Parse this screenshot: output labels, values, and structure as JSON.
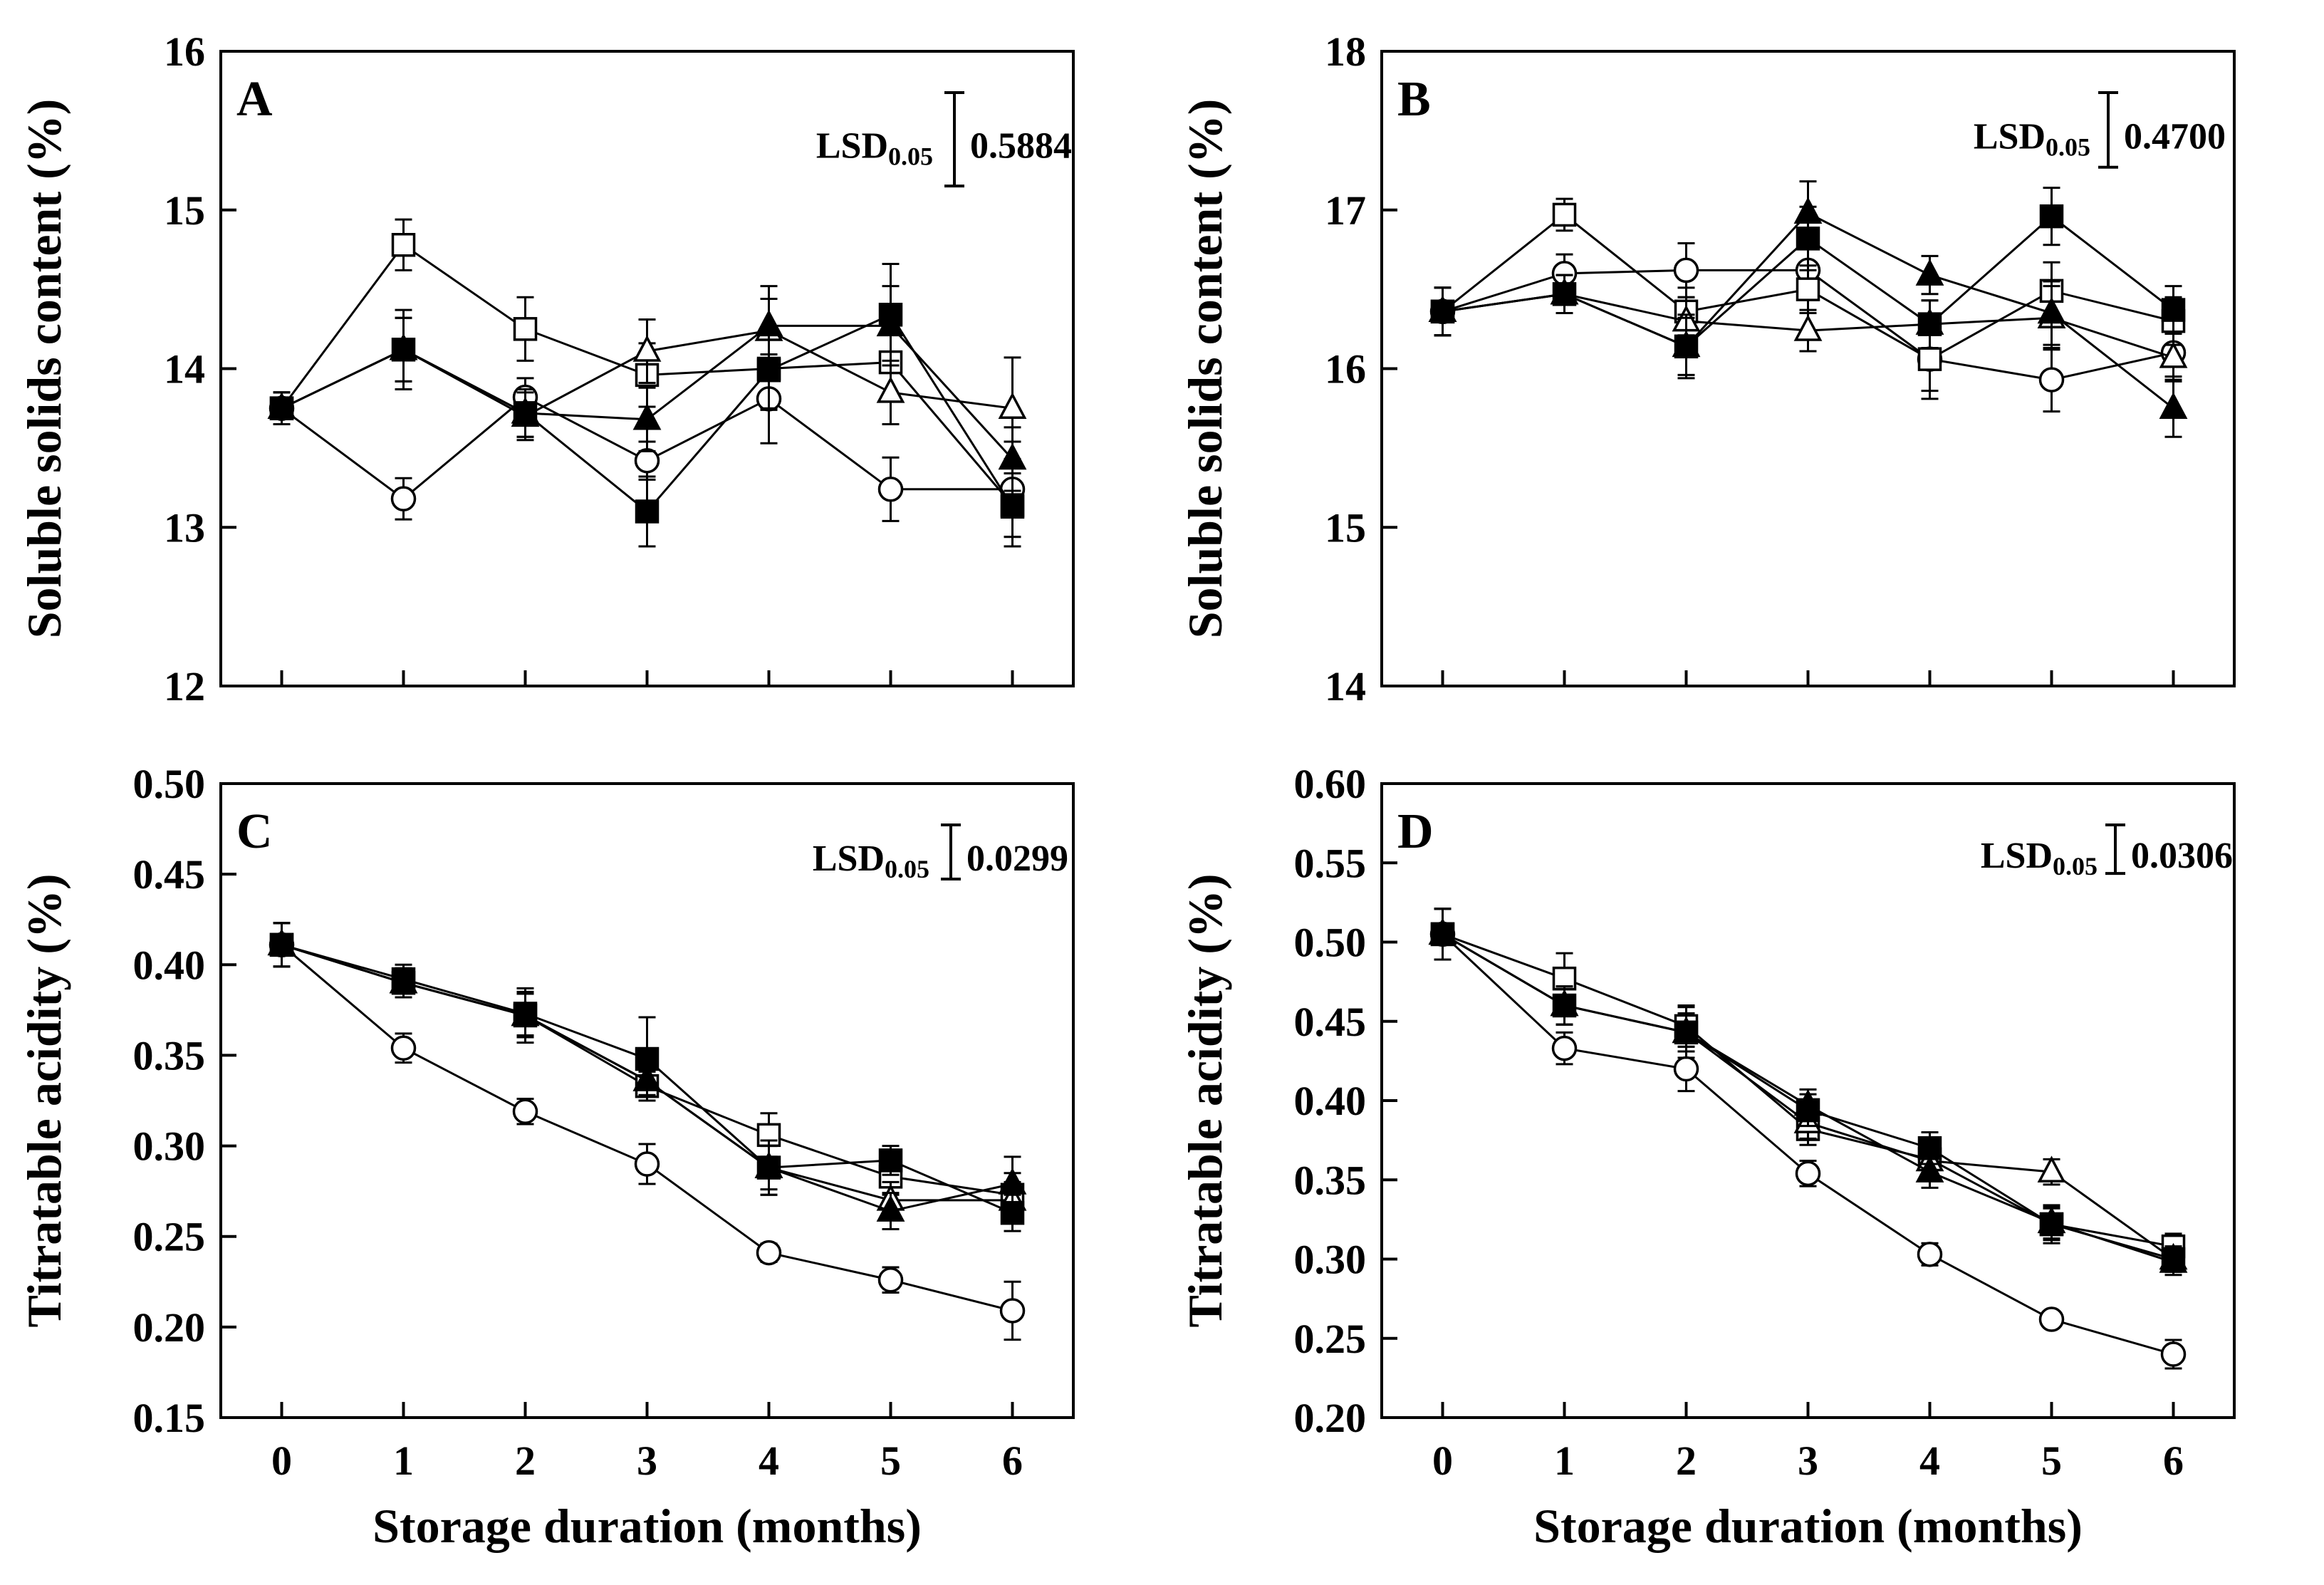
{
  "chart_data": [
    {
      "panel": "A",
      "type": "line",
      "title": "",
      "xlabel": "",
      "ylabel": "Soluble solids content (%)",
      "x": [
        0,
        1,
        2,
        3,
        4,
        5,
        6
      ],
      "xticks": [
        "0",
        "1",
        "2",
        "3",
        "4",
        "5",
        "6"
      ],
      "show_xtick_labels": false,
      "ylim": [
        12,
        16
      ],
      "yticks": [
        "12",
        "13",
        "14",
        "15",
        "16"
      ],
      "lsd": {
        "label": "LSD",
        "subscript": "0.05",
        "value": "0.5884",
        "size": 0.5884
      },
      "series": [
        {
          "name": "open circle",
          "marker": "circle",
          "fill": "none",
          "values": [
            13.75,
            13.18,
            13.82,
            13.42,
            13.81,
            13.24,
            13.24
          ],
          "errors": [
            0.1,
            0.13,
            0.12,
            0.12,
            0.28,
            0.2,
            0.3
          ]
        },
        {
          "name": "open square",
          "marker": "square",
          "fill": "none",
          "values": [
            13.75,
            14.78,
            14.25,
            13.96,
            14.0,
            14.04,
            13.14
          ],
          "errors": [
            0.1,
            0.16,
            0.2,
            0.2,
            0.25,
            0.2,
            0.2
          ]
        },
        {
          "name": "open triangle",
          "marker": "triangle",
          "fill": "none",
          "values": [
            13.75,
            14.12,
            13.7,
            14.11,
            14.24,
            13.85,
            13.75
          ],
          "errors": [
            0.1,
            0.2,
            0.15,
            0.2,
            0.2,
            0.2,
            0.32
          ]
        },
        {
          "name": "filled triangle",
          "marker": "triangle",
          "fill": "solid",
          "values": [
            13.75,
            14.12,
            13.72,
            13.68,
            14.27,
            14.27,
            13.43
          ],
          "errors": [
            0.1,
            0.2,
            0.15,
            0.2,
            0.25,
            0.25,
            0.2
          ]
        },
        {
          "name": "filled square",
          "marker": "square",
          "fill": "solid",
          "values": [
            13.75,
            14.12,
            13.72,
            13.1,
            13.99,
            14.34,
            13.13
          ],
          "errors": [
            0.1,
            0.25,
            0.15,
            0.22,
            0.25,
            0.32,
            0.25
          ]
        }
      ]
    },
    {
      "panel": "B",
      "type": "line",
      "title": "",
      "xlabel": "",
      "ylabel": "Soluble solids content (%)",
      "x": [
        0,
        1,
        2,
        3,
        4,
        5,
        6
      ],
      "xticks": [
        "0",
        "1",
        "2",
        "3",
        "4",
        "5",
        "6"
      ],
      "show_xtick_labels": false,
      "ylim": [
        14,
        18
      ],
      "yticks": [
        "14",
        "15",
        "16",
        "17",
        "18"
      ],
      "lsd": {
        "label": "LSD",
        "subscript": "0.05",
        "value": "0.4700",
        "size": 0.47
      },
      "series": [
        {
          "name": "open circle",
          "marker": "circle",
          "fill": "none",
          "values": [
            16.36,
            16.6,
            16.62,
            16.62,
            16.06,
            15.93,
            16.1
          ],
          "errors": [
            0.15,
            0.12,
            0.17,
            0.15,
            0.25,
            0.2,
            0.15
          ]
        },
        {
          "name": "open square",
          "marker": "square",
          "fill": "none",
          "values": [
            16.36,
            16.97,
            16.36,
            16.5,
            16.06,
            16.49,
            16.3
          ],
          "errors": [
            0.15,
            0.1,
            0.15,
            0.15,
            0.2,
            0.18,
            0.15
          ]
        },
        {
          "name": "open triangle",
          "marker": "triangle",
          "fill": "none",
          "values": [
            16.36,
            16.47,
            16.3,
            16.24,
            16.28,
            16.32,
            16.07
          ],
          "errors": [
            0.15,
            0.12,
            0.15,
            0.13,
            0.15,
            0.2,
            0.15
          ]
        },
        {
          "name": "filled triangle",
          "marker": "triangle",
          "fill": "solid",
          "values": [
            16.36,
            16.47,
            16.14,
            16.98,
            16.59,
            16.35,
            15.75
          ],
          "errors": [
            0.15,
            0.12,
            0.18,
            0.2,
            0.12,
            0.2,
            0.18
          ]
        },
        {
          "name": "filled square",
          "marker": "square",
          "fill": "solid",
          "values": [
            16.36,
            16.47,
            16.14,
            16.82,
            16.28,
            16.96,
            16.37
          ],
          "errors": [
            0.15,
            0.12,
            0.2,
            0.2,
            0.15,
            0.18,
            0.15
          ]
        }
      ]
    },
    {
      "panel": "C",
      "type": "line",
      "title": "",
      "xlabel": "Storage duration (months)",
      "ylabel": "Titratable acidity (%)",
      "x": [
        0,
        1,
        2,
        3,
        4,
        5,
        6
      ],
      "xticks": [
        "0",
        "1",
        "2",
        "3",
        "4",
        "5",
        "6"
      ],
      "show_xtick_labels": true,
      "ylim": [
        0.15,
        0.5
      ],
      "yticks": [
        "0.15",
        "0.20",
        "0.25",
        "0.30",
        "0.35",
        "0.40",
        "0.45",
        "0.50"
      ],
      "lsd": {
        "label": "LSD",
        "subscript": "0.05",
        "value": "0.0299",
        "size": 0.0299
      },
      "series": [
        {
          "name": "open circle",
          "marker": "circle",
          "fill": "none",
          "values": [
            0.411,
            0.354,
            0.319,
            0.29,
            0.241,
            0.226,
            0.209
          ],
          "errors": [
            0.012,
            0.008,
            0.007,
            0.011,
            0.005,
            0.007,
            0.016
          ]
        },
        {
          "name": "open square",
          "marker": "square",
          "fill": "none",
          "values": [
            0.411,
            0.39,
            0.372,
            0.333,
            0.306,
            0.283,
            0.273
          ],
          "errors": [
            0.012,
            0.008,
            0.015,
            0.008,
            0.012,
            0.01,
            0.012
          ]
        },
        {
          "name": "open triangle",
          "marker": "triangle",
          "fill": "none",
          "values": [
            0.411,
            0.39,
            0.372,
            0.336,
            0.288,
            0.27,
            0.27
          ],
          "errors": [
            0.012,
            0.008,
            0.012,
            0.008,
            0.012,
            0.01,
            0.01
          ]
        },
        {
          "name": "filled triangle",
          "marker": "triangle",
          "fill": "solid",
          "values": [
            0.411,
            0.39,
            0.372,
            0.336,
            0.288,
            0.264,
            0.279
          ],
          "errors": [
            0.012,
            0.008,
            0.012,
            0.008,
            0.015,
            0.01,
            0.015
          ]
        },
        {
          "name": "filled square",
          "marker": "square",
          "fill": "solid",
          "values": [
            0.411,
            0.392,
            0.373,
            0.348,
            0.288,
            0.292,
            0.263
          ],
          "errors": [
            0.012,
            0.008,
            0.012,
            0.023,
            0.015,
            0.008,
            0.01
          ]
        }
      ]
    },
    {
      "panel": "D",
      "type": "line",
      "title": "",
      "xlabel": "Storage duration (months)",
      "ylabel": "Titratable acidity (%)",
      "x": [
        0,
        1,
        2,
        3,
        4,
        5,
        6
      ],
      "xticks": [
        "0",
        "1",
        "2",
        "3",
        "4",
        "5",
        "6"
      ],
      "show_xtick_labels": true,
      "ylim": [
        0.2,
        0.6
      ],
      "yticks": [
        "0.20",
        "0.25",
        "0.30",
        "0.35",
        "0.40",
        "0.45",
        "0.50",
        "0.55",
        "0.60"
      ],
      "lsd": {
        "label": "LSD",
        "subscript": "0.05",
        "value": "0.0306",
        "size": 0.0306
      },
      "series": [
        {
          "name": "open circle",
          "marker": "circle",
          "fill": "none",
          "values": [
            0.505,
            0.433,
            0.42,
            0.354,
            0.303,
            0.262,
            0.24
          ],
          "errors": [
            0.016,
            0.01,
            0.014,
            0.008,
            0.007,
            0.005,
            0.009
          ]
        },
        {
          "name": "open square",
          "marker": "square",
          "fill": "none",
          "values": [
            0.505,
            0.477,
            0.447,
            0.382,
            0.363,
            0.322,
            0.308
          ],
          "errors": [
            0.016,
            0.016,
            0.013,
            0.01,
            0.01,
            0.01,
            0.008
          ]
        },
        {
          "name": "open triangle",
          "marker": "triangle",
          "fill": "none",
          "values": [
            0.505,
            0.46,
            0.443,
            0.386,
            0.362,
            0.355,
            0.3
          ],
          "errors": [
            0.016,
            0.012,
            0.012,
            0.01,
            0.01,
            0.008,
            0.008
          ]
        },
        {
          "name": "filled triangle",
          "marker": "triangle",
          "fill": "solid",
          "values": [
            0.505,
            0.46,
            0.443,
            0.397,
            0.355,
            0.323,
            0.298
          ],
          "errors": [
            0.016,
            0.012,
            0.012,
            0.01,
            0.01,
            0.01,
            0.008
          ]
        },
        {
          "name": "filled square",
          "marker": "square",
          "fill": "solid",
          "values": [
            0.505,
            0.46,
            0.443,
            0.394,
            0.37,
            0.322,
            0.3
          ],
          "errors": [
            0.016,
            0.012,
            0.016,
            0.01,
            0.01,
            0.012,
            0.008
          ]
        }
      ]
    }
  ]
}
